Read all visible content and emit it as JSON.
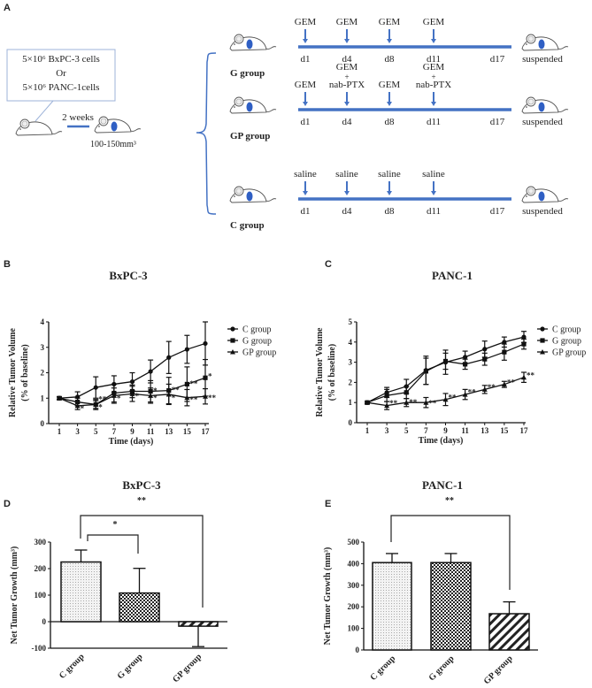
{
  "panel_labels": {
    "A": "A",
    "B": "B",
    "C": "C",
    "D": "D",
    "E": "E"
  },
  "panelA": {
    "box_lines": [
      "5×10⁶ BxPC-3 cells",
      "Or",
      "5×10⁶ PANC-1cells"
    ],
    "interval_label": "2 weeks",
    "tumor_size": "100-150mm³",
    "groups": [
      {
        "name": "G group",
        "treatments": [
          [
            "GEM"
          ],
          [
            "GEM"
          ],
          [
            "GEM"
          ],
          [
            "GEM"
          ]
        ],
        "days": [
          "d1",
          "d4",
          "d8",
          "d11",
          "d17"
        ],
        "end_label": "suspended"
      },
      {
        "name": "GP group",
        "treatments": [
          [
            "GEM"
          ],
          [
            "GEM",
            "+",
            "nab-PTX"
          ],
          [
            "GEM"
          ],
          [
            "GEM",
            "+",
            "nab-PTX"
          ]
        ],
        "days": [
          "d1",
          "d4",
          "d8",
          "d11",
          "d17"
        ],
        "end_label": "suspended"
      },
      {
        "name": "C group",
        "treatments": [
          [
            "saline"
          ],
          [
            "saline"
          ],
          [
            "saline"
          ],
          [
            "saline"
          ]
        ],
        "days": [
          "d1",
          "d4",
          "d8",
          "d11",
          "d17"
        ],
        "end_label": "suspended"
      }
    ],
    "colors": {
      "timeline": "#4472c4",
      "tumor": "#2f5fc4",
      "box_border": "#9db3d9"
    }
  },
  "chart_data": [
    {
      "panel": "B",
      "type": "line",
      "title": "BxPC-3",
      "xlabel": "Time (days)",
      "ylabel": [
        "Relative Tumor Volume",
        "(% of baseline)"
      ],
      "x": [
        1,
        3,
        5,
        7,
        9,
        11,
        13,
        15,
        17
      ],
      "xlim": [
        -0.2,
        17.3
      ],
      "ylim": [
        0,
        4
      ],
      "yticks": [
        0,
        1,
        2,
        3,
        4
      ],
      "legend_position": "right",
      "series": [
        {
          "name": "C group",
          "marker": "circle",
          "values": [
            1,
            1.05,
            1.42,
            1.55,
            1.65,
            2.05,
            2.6,
            2.92,
            3.15
          ],
          "error": [
            0.05,
            0.2,
            0.42,
            0.33,
            0.35,
            0.45,
            0.63,
            0.55,
            0.85
          ]
        },
        {
          "name": "G group",
          "marker": "square",
          "values": [
            1,
            0.85,
            0.75,
            1.2,
            1.27,
            1.27,
            1.3,
            1.55,
            1.8
          ],
          "error": [
            0.05,
            0.15,
            0.2,
            0.35,
            0.25,
            0.42,
            0.52,
            0.68,
            0.72
          ]
        },
        {
          "name": "GP group",
          "marker": "triangle",
          "values": [
            1,
            0.7,
            0.75,
            1.1,
            1.17,
            1.1,
            1.15,
            1.02,
            1.07
          ],
          "error": [
            0.05,
            0.15,
            0.15,
            0.3,
            0.3,
            0.3,
            0.4,
            0.32,
            0.3
          ]
        }
      ],
      "annotations": [
        {
          "x": 3,
          "y": 0.62,
          "text": "*"
        },
        {
          "x": 5,
          "y": 1.0,
          "text": "**"
        },
        {
          "x": 5,
          "y": 0.68,
          "text": "*"
        },
        {
          "x": 7,
          "y": 1.02,
          "text": "*"
        },
        {
          "x": 9,
          "y": 1.12,
          "text": "*"
        },
        {
          "x": 11,
          "y": 1.32,
          "text": "*"
        },
        {
          "x": 11,
          "y": 1.05,
          "text": "*"
        },
        {
          "x": 13,
          "y": 1.35,
          "text": "**"
        },
        {
          "x": 13,
          "y": 1.05,
          "text": "*"
        },
        {
          "x": 15,
          "y": 1.6,
          "text": "**"
        },
        {
          "x": 15,
          "y": 0.98,
          "text": "**"
        },
        {
          "x": 17,
          "y": 1.9,
          "text": "*"
        },
        {
          "x": 17,
          "y": 1.05,
          "text": "**"
        }
      ]
    },
    {
      "panel": "C",
      "type": "line",
      "title": "PANC-1",
      "xlabel": "Time (days)",
      "ylabel": [
        "Relative Tumor Volume",
        "(% of baseline)"
      ],
      "x": [
        1,
        3,
        5,
        7,
        9,
        11,
        13,
        15,
        17
      ],
      "xlim": [
        0,
        17.2
      ],
      "ylim": [
        0,
        5
      ],
      "yticks": [
        0,
        1,
        2,
        3,
        4,
        5
      ],
      "legend_position": "right",
      "series": [
        {
          "name": "C group",
          "marker": "circle",
          "values": [
            1,
            1.5,
            1.8,
            2.6,
            3.0,
            3.25,
            3.65,
            4.0,
            4.25
          ],
          "error": [
            0.05,
            0.25,
            0.35,
            0.7,
            0.6,
            0.3,
            0.4,
            0.25,
            0.28
          ]
        },
        {
          "name": "G group",
          "marker": "square",
          "values": [
            1,
            1.35,
            1.5,
            2.55,
            3.05,
            2.9,
            3.15,
            3.5,
            3.9
          ],
          "error": [
            0.05,
            0.3,
            0.3,
            0.65,
            0.4,
            0.25,
            0.3,
            0.4,
            0.25
          ]
        },
        {
          "name": "GP group",
          "marker": "triangle",
          "values": [
            1,
            0.85,
            1.0,
            1.0,
            1.15,
            1.4,
            1.65,
            1.9,
            2.25
          ],
          "error": [
            0.05,
            0.2,
            0.2,
            0.25,
            0.3,
            0.25,
            0.2,
            0.15,
            0.25
          ]
        }
      ],
      "annotations": [
        {
          "x": 3,
          "y": 1.0,
          "text": "**"
        },
        {
          "x": 5,
          "y": 1.05,
          "text": "**"
        },
        {
          "x": 7,
          "y": 1.0,
          "text": "**"
        },
        {
          "x": 9,
          "y": 1.3,
          "text": "**"
        },
        {
          "x": 11,
          "y": 1.55,
          "text": "**"
        },
        {
          "x": 13,
          "y": 1.8,
          "text": "**"
        },
        {
          "x": 15,
          "y": 2.05,
          "text": "**"
        },
        {
          "x": 17,
          "y": 2.4,
          "text": "**"
        }
      ]
    },
    {
      "panel": "D",
      "type": "bar",
      "title": "BxPC-3",
      "ylabel": "Net Tumor Growth (mm³)",
      "categories": [
        "C group",
        "G group",
        "GP group"
      ],
      "values": [
        225,
        108,
        -17
      ],
      "error": [
        45,
        93,
        77
      ],
      "patterns": [
        "dots",
        "checker",
        "stripes"
      ],
      "ylim": [
        -100,
        300
      ],
      "yticks": [
        -100,
        0,
        100,
        200,
        300
      ],
      "comparisons": [
        {
          "from": "C group",
          "to": "GP group",
          "label": "**"
        },
        {
          "from": "C group",
          "to": "G group",
          "label": "*"
        }
      ]
    },
    {
      "panel": "E",
      "type": "bar",
      "title": "PANC-1",
      "ylabel": "Net Tumor Growth (mm³)",
      "categories": [
        "C group",
        "G group",
        "GP group"
      ],
      "values": [
        405,
        405,
        168
      ],
      "error": [
        42,
        42,
        55
      ],
      "patterns": [
        "dots",
        "checker",
        "stripes"
      ],
      "ylim": [
        0,
        500
      ],
      "yticks": [
        0,
        100,
        200,
        300,
        400,
        500
      ],
      "comparisons": [
        {
          "from": "C group",
          "to": "GP group",
          "label": "**"
        }
      ]
    }
  ]
}
